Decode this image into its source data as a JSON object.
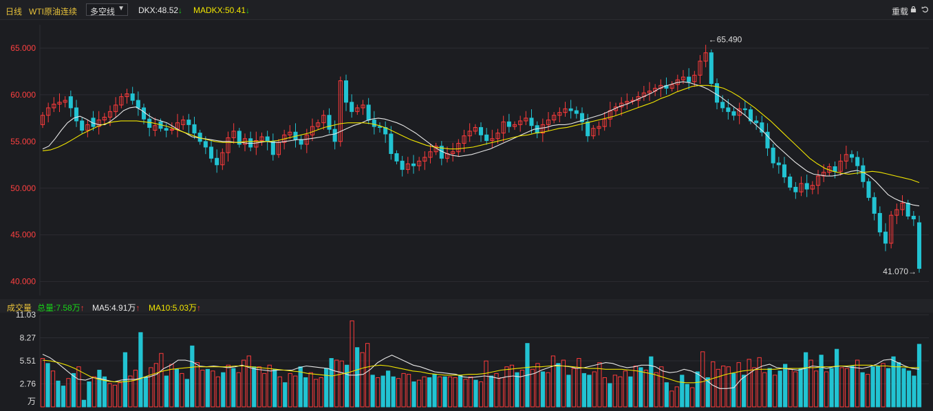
{
  "toolbar": {
    "period": "日线",
    "series_name": "WTI原油连续",
    "indicator_select": "多空线",
    "dkx_label": "DKX:48.52",
    "madkx_label": "MADKX:50.41",
    "down_arrow": "↓",
    "restore_label": "重载"
  },
  "volume_header": {
    "title": "成交量",
    "total": "总量:7.58万",
    "ma5": "MA5:4.91万",
    "ma10": "MA10:5.03万",
    "up_arrow": "↑"
  },
  "colors": {
    "up": "#ff3b3b",
    "down": "#22c3d2",
    "ma_white": "#e8e8e8",
    "ma_yellow": "#f2e600",
    "grid": "#2c2d33",
    "price_axis": "#ff4040",
    "volume_axis": "#dddddd"
  },
  "chart_data": [
    {
      "type": "candlestick",
      "title": "WTI原油连续 日线",
      "ylim": [
        38.5,
        67.5
      ],
      "y_ticks": [
        "65.000",
        "60.000",
        "55.000",
        "50.000",
        "45.000",
        "40.000"
      ],
      "y_tick_values": [
        65,
        60,
        55,
        50,
        45,
        40
      ],
      "annotations": {
        "high": "65.490",
        "low": "41.070"
      },
      "close": [
        57.8,
        58.6,
        59.0,
        59.2,
        59.4,
        58.6,
        57.2,
        56.2,
        56.8,
        56.6,
        57.3,
        57.6,
        58.2,
        58.9,
        59.8,
        60.1,
        59.4,
        58.6,
        57.4,
        56.5,
        56.7,
        56.4,
        56.2,
        56.3,
        57.0,
        57.3,
        56.8,
        55.9,
        55.0,
        54.4,
        53.2,
        52.5,
        53.8,
        55.4,
        56.1,
        54.7,
        55.3,
        54.4,
        55.1,
        55.5,
        55.0,
        53.6,
        54.9,
        55.7,
        56.0,
        55.2,
        54.7,
        55.7,
        56.6,
        57.0,
        57.8,
        56.3,
        55.0,
        61.5,
        59.2,
        58.2,
        58.6,
        58.9,
        57.3,
        56.6,
        56.5,
        55.8,
        53.7,
        52.9,
        52.0,
        52.6,
        52.4,
        52.9,
        53.3,
        53.9,
        54.5,
        53.2,
        53.7,
        53.9,
        54.8,
        55.6,
        56.1,
        56.5,
        55.7,
        55.1,
        55.3,
        55.9,
        57.1,
        56.6,
        56.8,
        57.2,
        57.5,
        56.7,
        55.9,
        56.8,
        57.3,
        57.8,
        58.1,
        58.5,
        58.3,
        58.0,
        57.1,
        55.6,
        56.4,
        56.6,
        57.4,
        58.3,
        58.7,
        59.1,
        59.3,
        59.4,
        59.8,
        60.2,
        60.4,
        60.7,
        61.0,
        60.7,
        61.1,
        61.6,
        61.9,
        61.4,
        62.1,
        63.6,
        64.5,
        61.2,
        59.2,
        58.6,
        58.2,
        57.8,
        58.5,
        58.4,
        57.2,
        57.0,
        56.0,
        54.3,
        52.7,
        52.5,
        51.2,
        50.1,
        49.6,
        50.5,
        49.9,
        50.3,
        51.3,
        51.7,
        52.3,
        51.8,
        52.9,
        53.6,
        53.3,
        52.4,
        50.7,
        49.0,
        47.3,
        45.3,
        44.1,
        47.1,
        47.7,
        48.4,
        47.0,
        46.7,
        41.4
      ],
      "open": [
        56.8,
        57.8,
        58.6,
        59.0,
        59.2,
        59.8,
        58.6,
        57.2,
        56.2,
        57.5,
        56.6,
        57.3,
        57.6,
        58.2,
        58.9,
        59.8,
        60.1,
        59.4,
        58.6,
        57.4,
        56.2,
        57.1,
        56.4,
        56.2,
        56.3,
        56.8,
        57.3,
        56.8,
        55.9,
        55.0,
        54.4,
        53.2,
        52.5,
        53.8,
        55.4,
        56.1,
        54.7,
        55.3,
        54.4,
        55.1,
        55.5,
        55.0,
        53.6,
        54.9,
        55.7,
        56.0,
        55.2,
        54.7,
        55.7,
        56.6,
        57.0,
        57.8,
        56.3,
        55.0,
        61.5,
        59.2,
        58.2,
        58.6,
        58.9,
        57.3,
        56.6,
        56.5,
        55.8,
        53.7,
        52.9,
        52.0,
        52.6,
        52.4,
        52.9,
        53.3,
        53.9,
        54.5,
        53.2,
        53.7,
        53.9,
        54.8,
        55.6,
        56.1,
        56.5,
        55.7,
        55.1,
        55.3,
        55.9,
        57.1,
        56.6,
        56.8,
        57.2,
        57.5,
        56.7,
        55.9,
        56.8,
        57.3,
        57.8,
        58.1,
        58.5,
        58.3,
        58.0,
        57.1,
        55.6,
        56.4,
        56.6,
        57.4,
        58.3,
        58.7,
        59.1,
        59.3,
        59.4,
        59.8,
        60.2,
        60.4,
        60.7,
        61.0,
        60.7,
        61.1,
        61.6,
        61.9,
        61.4,
        62.1,
        63.6,
        64.5,
        61.2,
        59.2,
        58.6,
        58.2,
        57.8,
        58.5,
        58.4,
        57.2,
        57.0,
        56.0,
        54.3,
        52.7,
        52.5,
        51.2,
        50.1,
        49.6,
        50.5,
        49.9,
        50.3,
        51.3,
        51.7,
        52.3,
        51.8,
        52.9,
        53.6,
        53.3,
        52.4,
        50.7,
        49.0,
        47.3,
        45.3,
        44.1,
        47.1,
        47.7,
        48.4,
        47.0,
        46.3
      ],
      "ma_white": [
        54.2,
        54.5,
        55.3,
        56.2,
        57.0,
        57.5,
        57.7,
        57.4,
        57.0,
        56.8,
        56.8,
        57.2,
        57.7,
        58.3,
        58.6,
        58.7,
        58.3,
        57.8,
        57.4,
        57.2,
        57.0,
        56.6,
        56.2,
        55.9,
        55.5,
        55.4,
        55.3,
        55.2,
        55.1,
        55.0,
        55.0,
        54.9,
        54.9,
        54.8,
        54.8,
        54.9,
        55.0,
        54.9,
        54.9,
        55.0,
        55.1,
        55.2,
        55.2,
        55.3,
        55.4,
        55.5,
        55.7,
        55.8,
        56.1,
        56.4,
        56.7,
        56.9,
        57.2,
        57.4,
        57.5,
        57.4,
        57.2,
        57.0,
        56.7,
        56.3,
        55.9,
        55.4,
        54.9,
        54.4,
        54.0,
        53.7,
        53.5,
        53.4,
        53.5,
        53.6,
        53.8,
        54.0,
        54.2,
        54.5,
        54.8,
        55.1,
        55.4,
        55.7,
        56.0,
        56.3,
        56.4,
        56.5,
        56.7,
        56.8,
        56.8,
        56.9,
        57.1,
        57.3,
        57.5,
        57.7,
        57.9,
        58.2,
        58.5,
        58.8,
        59.0,
        59.3,
        59.6,
        59.9,
        60.2,
        60.6,
        60.9,
        61.1,
        61.3,
        61.4,
        61.3,
        61.1,
        60.9,
        60.6,
        60.2,
        59.8,
        59.3,
        58.8,
        58.3,
        57.8,
        57.2,
        56.6,
        56.0,
        55.3,
        54.6,
        54.0,
        53.4,
        52.8,
        52.3,
        51.8,
        51.5,
        51.4,
        51.3,
        51.3,
        51.4,
        51.6,
        51.8,
        51.9,
        51.7,
        51.3,
        50.7,
        50.0,
        49.3,
        48.9,
        48.6,
        48.4,
        48.2,
        48.1
      ],
      "ma_yellow": [
        54.0,
        54.1,
        54.4,
        54.8,
        55.3,
        55.8,
        56.2,
        56.6,
        56.9,
        57.1,
        57.2,
        57.2,
        57.2,
        57.1,
        57.0,
        56.8,
        56.6,
        56.3,
        56.0,
        55.7,
        55.4,
        55.2,
        55.0,
        54.9,
        54.9,
        54.9,
        55.0,
        55.0,
        55.0,
        55.0,
        55.1,
        55.3,
        55.5,
        55.7,
        55.9,
        56.2,
        56.5,
        56.7,
        56.9,
        57.0,
        57.0,
        57.0,
        56.9,
        56.7,
        56.4,
        56.0,
        55.6,
        55.2,
        54.9,
        54.6,
        54.4,
        54.3,
        54.2,
        54.2,
        54.3,
        54.4,
        54.6,
        54.8,
        55.0,
        55.2,
        55.4,
        55.6,
        55.7,
        55.9,
        56.0,
        56.2,
        56.4,
        56.5,
        56.7,
        56.9,
        57.1,
        57.3,
        57.5,
        57.7,
        58.0,
        58.3,
        58.6,
        58.9,
        59.2,
        59.6,
        59.9,
        60.3,
        60.6,
        60.9,
        61.0,
        61.0,
        60.9,
        60.7,
        60.3,
        59.8,
        59.2,
        58.6,
        57.9,
        57.2,
        56.4,
        55.6,
        54.8,
        54.0,
        53.2,
        52.6,
        52.1,
        51.8,
        51.6,
        51.5,
        51.6,
        51.7,
        51.8,
        51.7,
        51.5,
        51.3,
        51.1,
        50.9,
        50.6
      ]
    },
    {
      "type": "bar",
      "title": "成交量",
      "unit": "万",
      "ylim": [
        0,
        11.03
      ],
      "y_ticks": [
        "11.03",
        "8.27",
        "5.51",
        "2.76"
      ],
      "y_tick_values": [
        11.03,
        8.27,
        5.51,
        2.76
      ],
      "values": [
        5.8,
        5.2,
        4.3,
        3.1,
        2.5,
        3.4,
        4.0,
        4.8,
        0.8,
        3.0,
        3.6,
        4.4,
        3.6,
        2.8,
        2.6,
        2.9,
        6.5,
        3.7,
        4.4,
        8.9,
        3.6,
        4.7,
        5.2,
        6.4,
        3.7,
        5.1,
        4.5,
        4.0,
        3.3,
        7.3,
        5.3,
        4.4,
        4.5,
        4.3,
        3.6,
        4.1,
        5.0,
        4.6,
        4.1,
        5.6,
        6.1,
        4.8,
        4.8,
        4.0,
        5.0,
        4.5,
        3.6,
        2.9,
        4.0,
        3.7,
        4.8,
        3.5,
        4.1,
        3.3,
        3.5,
        4.6,
        5.8,
        5.6,
        5.5,
        5.0,
        10.3,
        7.1,
        6.5,
        7.6,
        3.8,
        3.5,
        3.7,
        4.3,
        3.6,
        3.4,
        4.0,
        3.9,
        3.0,
        3.2,
        3.6,
        3.5,
        3.9,
        3.6,
        3.6,
        3.6,
        3.5,
        3.8,
        3.3,
        3.6,
        3.2,
        3.0,
        5.5,
        3.7,
        4.0,
        3.5,
        4.8,
        5.0,
        4.1,
        4.4,
        7.6,
        4.5,
        5.2,
        4.2,
        4.1,
        6.1,
        5.2,
        5.6,
        3.8,
        4.6,
        5.8,
        4.0,
        3.8,
        4.2,
        5.3,
        3.5,
        2.8,
        3.8,
        3.6,
        4.3,
        3.6,
        4.9,
        4.7,
        4.4,
        6.0,
        4.1,
        4.8,
        2.9,
        1.9,
        2.4,
        3.8,
        2.7,
        2.3,
        4.2,
        6.6,
        3.5,
        5.4,
        4.5,
        4.9,
        4.8,
        4.0,
        5.3,
        3.8,
        5.7,
        4.7,
        5.9,
        4.1,
        4.6,
        3.8,
        4.3,
        5.1,
        4.5,
        4.2,
        4.6,
        6.5,
        5.6,
        4.3,
        6.2,
        4.2,
        4.6,
        6.9,
        4.7,
        4.6,
        4.9,
        5.6,
        4.1,
        3.9,
        4.8,
        4.9,
        5.2,
        4.6,
        6.0,
        5.3,
        4.6,
        4.3,
        3.7,
        7.5
      ],
      "up": [
        1,
        0,
        1,
        0,
        0,
        1,
        0,
        1,
        0,
        0,
        1,
        0,
        0,
        1,
        1,
        1,
        0,
        1,
        1,
        0,
        0,
        1,
        1,
        1,
        0,
        1,
        0,
        1,
        0,
        0,
        1,
        1,
        0,
        1,
        1,
        0,
        1,
        0,
        1,
        1,
        1,
        0,
        1,
        1,
        1,
        0,
        1,
        0,
        1,
        1,
        0,
        0,
        1,
        1,
        1,
        0,
        0,
        1,
        1,
        0,
        1,
        0,
        1,
        1,
        0,
        1,
        0,
        0,
        0,
        1,
        1,
        1,
        0,
        1,
        1,
        0,
        0,
        1,
        0,
        1,
        1,
        0,
        1,
        1,
        0,
        1,
        1,
        0,
        1,
        1,
        1,
        1,
        0,
        1,
        0,
        1,
        1,
        0,
        1,
        1,
        0,
        1,
        0,
        1,
        1,
        0,
        0,
        1,
        1,
        1,
        0,
        1,
        1,
        1,
        0,
        1,
        0,
        1,
        0,
        1,
        1,
        0,
        1,
        1,
        0,
        0,
        1,
        0,
        1,
        0,
        1,
        1,
        1,
        1,
        0,
        1,
        0,
        1,
        1,
        1,
        1,
        0,
        1,
        0,
        0,
        1,
        1,
        0,
        0,
        1,
        1,
        0,
        1,
        0,
        0,
        1,
        1,
        0,
        1,
        0,
        1,
        0,
        0,
        1,
        0,
        0
      ],
      "ma_white": [
        6.3,
        5.9,
        5.3,
        4.6,
        3.9,
        3.3,
        3.2,
        3.5,
        3.4,
        3.2,
        3.0,
        3.2,
        3.3,
        3.3,
        3.5,
        3.6,
        3.9,
        4.6,
        5.0,
        5.6,
        5.6,
        5.4,
        4.9,
        4.8,
        4.9,
        4.8,
        4.7,
        4.8,
        5.0,
        4.7,
        4.5,
        4.4,
        4.3,
        4.4,
        4.4,
        4.4,
        4.7,
        4.9,
        4.8,
        4.7,
        4.6,
        4.3,
        4.1,
        3.8,
        3.8,
        3.9,
        4.5,
        5.3,
        5.8,
        6.2,
        5.8,
        5.4,
        5.0,
        4.8,
        4.5,
        4.2,
        4.1,
        4.0,
        3.9,
        3.6,
        3.5,
        3.6,
        3.7,
        3.6,
        3.4,
        3.6,
        3.7,
        3.6,
        3.8,
        4.0,
        4.4,
        4.7,
        5.0,
        4.9,
        4.8,
        4.6,
        4.7,
        4.9,
        5.1,
        5.3,
        5.2,
        4.9,
        4.7,
        4.8,
        5.0,
        5.0,
        4.8,
        4.3,
        4.1,
        4.2,
        4.5,
        4.3,
        3.9,
        3.3,
        2.6,
        2.2,
        2.2,
        2.3,
        3.3,
        3.9,
        4.5,
        4.9,
        5.1,
        4.7,
        4.6,
        4.5,
        4.4,
        4.6,
        4.9,
        4.8,
        4.6,
        4.8,
        4.9,
        4.8,
        4.7,
        4.6,
        4.8,
        5.1,
        5.6,
        5.7,
        5.3,
        4.9,
        4.6,
        4.5
      ],
      "ma_yellow": [
        5.6,
        5.5,
        5.3,
        5.0,
        4.6,
        4.1,
        3.6,
        3.3,
        3.1,
        3.0,
        3.0,
        3.1,
        3.3,
        3.7,
        4.0,
        4.3,
        4.5,
        4.6,
        4.7,
        4.8,
        4.8,
        4.8,
        4.8,
        4.8,
        4.9,
        4.9,
        4.8,
        4.7,
        4.6,
        4.5,
        4.4,
        4.3,
        4.2,
        4.0,
        3.9,
        3.8,
        3.7,
        3.9,
        4.1,
        4.4,
        4.7,
        4.9,
        5.0,
        4.9,
        4.7,
        4.5,
        4.3,
        4.2,
        4.0,
        3.9,
        3.8,
        3.8,
        3.8,
        3.9,
        3.9,
        4.0,
        4.2,
        4.4,
        4.5,
        4.6,
        4.7,
        4.8,
        4.8,
        4.9,
        4.9,
        4.9,
        4.8,
        4.7,
        4.6,
        4.6,
        4.5,
        4.5,
        4.5,
        4.4,
        4.3,
        4.1,
        3.9,
        3.6,
        3.3,
        3.0,
        2.9,
        2.9,
        3.0,
        3.3,
        3.6,
        3.9,
        4.1,
        4.3,
        4.4,
        4.5,
        4.5,
        4.5,
        4.6,
        4.6,
        4.6,
        4.7,
        4.7,
        4.8,
        4.8,
        4.9,
        4.9,
        5.0,
        5.0,
        5.0,
        4.9,
        4.9,
        4.8,
        4.8,
        4.7,
        4.7
      ]
    }
  ]
}
